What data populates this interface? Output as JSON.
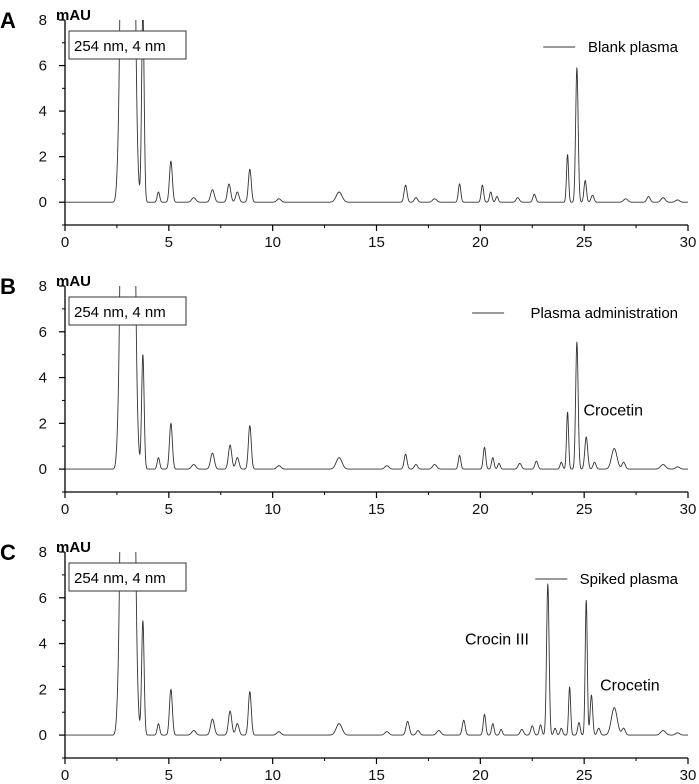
{
  "chart_data": [
    {
      "type": "line",
      "panel_label": "A",
      "ylabel": "mAU",
      "info_box": "254 nm, 4 nm",
      "legend": "Blank plasma",
      "legend_position": "top-right",
      "xlim": [
        0,
        30
      ],
      "ylim": [
        -1,
        8
      ],
      "x_ticks": [
        0,
        5,
        10,
        15,
        20,
        25,
        30
      ],
      "y_ticks": [
        0,
        2,
        4,
        6,
        8
      ],
      "baseline": 0,
      "annotations": [],
      "peaks": [
        {
          "x": 2.55,
          "y": 0.6,
          "w": 0.07
        },
        {
          "x": 2.85,
          "y": 30,
          "w": 0.13
        },
        {
          "x": 3.2,
          "y": 30,
          "w": 0.12
        },
        {
          "x": 3.42,
          "y": 1.6,
          "w": 0.1
        },
        {
          "x": 3.75,
          "y": 8.5,
          "w": 0.06
        },
        {
          "x": 4.5,
          "y": 0.45,
          "w": 0.06
        },
        {
          "x": 5.1,
          "y": 1.8,
          "w": 0.07
        },
        {
          "x": 6.2,
          "y": 0.2,
          "w": 0.1
        },
        {
          "x": 7.1,
          "y": 0.55,
          "w": 0.09
        },
        {
          "x": 7.9,
          "y": 0.8,
          "w": 0.08
        },
        {
          "x": 8.3,
          "y": 0.45,
          "w": 0.08
        },
        {
          "x": 8.9,
          "y": 1.45,
          "w": 0.07
        },
        {
          "x": 10.3,
          "y": 0.15,
          "w": 0.1
        },
        {
          "x": 13.2,
          "y": 0.45,
          "w": 0.14
        },
        {
          "x": 16.4,
          "y": 0.75,
          "w": 0.07
        },
        {
          "x": 16.9,
          "y": 0.2,
          "w": 0.08
        },
        {
          "x": 17.8,
          "y": 0.15,
          "w": 0.1
        },
        {
          "x": 19.0,
          "y": 0.8,
          "w": 0.06
        },
        {
          "x": 20.1,
          "y": 0.75,
          "w": 0.06
        },
        {
          "x": 20.5,
          "y": 0.45,
          "w": 0.06
        },
        {
          "x": 20.8,
          "y": 0.25,
          "w": 0.06
        },
        {
          "x": 21.8,
          "y": 0.2,
          "w": 0.08
        },
        {
          "x": 22.6,
          "y": 0.35,
          "w": 0.07
        },
        {
          "x": 24.2,
          "y": 2.1,
          "w": 0.05
        },
        {
          "x": 24.65,
          "y": 5.9,
          "w": 0.06
        },
        {
          "x": 25.05,
          "y": 0.95,
          "w": 0.06
        },
        {
          "x": 25.4,
          "y": 0.3,
          "w": 0.07
        },
        {
          "x": 27.0,
          "y": 0.15,
          "w": 0.1
        },
        {
          "x": 28.1,
          "y": 0.25,
          "w": 0.08
        },
        {
          "x": 28.8,
          "y": 0.2,
          "w": 0.1
        },
        {
          "x": 29.5,
          "y": 0.1,
          "w": 0.1
        }
      ]
    },
    {
      "type": "line",
      "panel_label": "B",
      "ylabel": "mAU",
      "info_box": "254 nm, 4 nm",
      "legend": "Plasma administration",
      "legend_position": "top-right",
      "xlim": [
        0,
        30
      ],
      "ylim": [
        -1,
        8
      ],
      "x_ticks": [
        0,
        5,
        10,
        15,
        20,
        25,
        30
      ],
      "y_ticks": [
        0,
        2,
        4,
        6,
        8
      ],
      "baseline": 0,
      "annotations": [
        {
          "text": "Crocetin",
          "x": 26.4,
          "y": 2.35
        }
      ],
      "peaks": [
        {
          "x": 2.55,
          "y": 0.6,
          "w": 0.07
        },
        {
          "x": 2.85,
          "y": 30,
          "w": 0.13
        },
        {
          "x": 3.2,
          "y": 30,
          "w": 0.12
        },
        {
          "x": 3.42,
          "y": 1.6,
          "w": 0.1
        },
        {
          "x": 3.75,
          "y": 5.0,
          "w": 0.06
        },
        {
          "x": 4.5,
          "y": 0.5,
          "w": 0.06
        },
        {
          "x": 5.1,
          "y": 2.0,
          "w": 0.07
        },
        {
          "x": 6.2,
          "y": 0.2,
          "w": 0.1
        },
        {
          "x": 7.1,
          "y": 0.7,
          "w": 0.09
        },
        {
          "x": 7.95,
          "y": 1.05,
          "w": 0.08
        },
        {
          "x": 8.3,
          "y": 0.5,
          "w": 0.08
        },
        {
          "x": 8.9,
          "y": 1.9,
          "w": 0.07
        },
        {
          "x": 10.3,
          "y": 0.15,
          "w": 0.1
        },
        {
          "x": 13.2,
          "y": 0.5,
          "w": 0.14
        },
        {
          "x": 15.5,
          "y": 0.15,
          "w": 0.1
        },
        {
          "x": 16.4,
          "y": 0.65,
          "w": 0.07
        },
        {
          "x": 16.9,
          "y": 0.2,
          "w": 0.08
        },
        {
          "x": 17.8,
          "y": 0.2,
          "w": 0.1
        },
        {
          "x": 19.0,
          "y": 0.6,
          "w": 0.06
        },
        {
          "x": 20.2,
          "y": 0.95,
          "w": 0.06
        },
        {
          "x": 20.6,
          "y": 0.5,
          "w": 0.06
        },
        {
          "x": 20.9,
          "y": 0.25,
          "w": 0.06
        },
        {
          "x": 21.9,
          "y": 0.25,
          "w": 0.08
        },
        {
          "x": 22.7,
          "y": 0.35,
          "w": 0.07
        },
        {
          "x": 23.9,
          "y": 0.3,
          "w": 0.06
        },
        {
          "x": 24.2,
          "y": 2.5,
          "w": 0.05
        },
        {
          "x": 24.65,
          "y": 5.55,
          "w": 0.06
        },
        {
          "x": 25.1,
          "y": 1.4,
          "w": 0.07
        },
        {
          "x": 25.5,
          "y": 0.3,
          "w": 0.07
        },
        {
          "x": 26.45,
          "y": 0.9,
          "w": 0.13
        },
        {
          "x": 26.9,
          "y": 0.3,
          "w": 0.08
        },
        {
          "x": 28.8,
          "y": 0.2,
          "w": 0.12
        },
        {
          "x": 29.5,
          "y": 0.1,
          "w": 0.1
        }
      ]
    },
    {
      "type": "line",
      "panel_label": "C",
      "ylabel": "mAU",
      "info_box": "254 nm, 4 nm",
      "legend": "Spiked plasma",
      "legend_position": "top-right",
      "xlim": [
        0,
        30
      ],
      "ylim": [
        -1,
        8
      ],
      "x_ticks": [
        0,
        5,
        10,
        15,
        20,
        25,
        30
      ],
      "y_ticks": [
        0,
        2,
        4,
        6,
        8
      ],
      "baseline": 0,
      "annotations": [
        {
          "text": "Crocin  III",
          "x": 20.8,
          "y": 3.95
        },
        {
          "text": "Crocetin",
          "x": 27.2,
          "y": 1.95
        }
      ],
      "peaks": [
        {
          "x": 2.55,
          "y": 0.6,
          "w": 0.07
        },
        {
          "x": 2.85,
          "y": 30,
          "w": 0.13
        },
        {
          "x": 3.2,
          "y": 30,
          "w": 0.12
        },
        {
          "x": 3.42,
          "y": 1.6,
          "w": 0.1
        },
        {
          "x": 3.75,
          "y": 5.0,
          "w": 0.06
        },
        {
          "x": 4.5,
          "y": 0.5,
          "w": 0.06
        },
        {
          "x": 5.1,
          "y": 2.0,
          "w": 0.07
        },
        {
          "x": 6.2,
          "y": 0.2,
          "w": 0.1
        },
        {
          "x": 7.1,
          "y": 0.7,
          "w": 0.09
        },
        {
          "x": 7.95,
          "y": 1.05,
          "w": 0.08
        },
        {
          "x": 8.3,
          "y": 0.5,
          "w": 0.08
        },
        {
          "x": 8.9,
          "y": 1.9,
          "w": 0.07
        },
        {
          "x": 10.3,
          "y": 0.15,
          "w": 0.1
        },
        {
          "x": 13.2,
          "y": 0.5,
          "w": 0.14
        },
        {
          "x": 15.5,
          "y": 0.15,
          "w": 0.1
        },
        {
          "x": 16.5,
          "y": 0.6,
          "w": 0.08
        },
        {
          "x": 17.0,
          "y": 0.2,
          "w": 0.08
        },
        {
          "x": 18.0,
          "y": 0.2,
          "w": 0.1
        },
        {
          "x": 19.2,
          "y": 0.65,
          "w": 0.07
        },
        {
          "x": 20.2,
          "y": 0.9,
          "w": 0.06
        },
        {
          "x": 20.6,
          "y": 0.5,
          "w": 0.06
        },
        {
          "x": 21.0,
          "y": 0.25,
          "w": 0.06
        },
        {
          "x": 22.0,
          "y": 0.25,
          "w": 0.08
        },
        {
          "x": 22.5,
          "y": 0.4,
          "w": 0.07
        },
        {
          "x": 22.9,
          "y": 0.45,
          "w": 0.06
        },
        {
          "x": 23.25,
          "y": 6.6,
          "w": 0.06
        },
        {
          "x": 23.6,
          "y": 0.3,
          "w": 0.06
        },
        {
          "x": 23.9,
          "y": 0.3,
          "w": 0.06
        },
        {
          "x": 24.3,
          "y": 2.1,
          "w": 0.05
        },
        {
          "x": 24.75,
          "y": 0.55,
          "w": 0.06
        },
        {
          "x": 25.1,
          "y": 5.9,
          "w": 0.05
        },
        {
          "x": 25.35,
          "y": 1.75,
          "w": 0.06
        },
        {
          "x": 25.7,
          "y": 0.3,
          "w": 0.07
        },
        {
          "x": 26.45,
          "y": 1.2,
          "w": 0.14
        },
        {
          "x": 26.9,
          "y": 0.3,
          "w": 0.08
        },
        {
          "x": 28.8,
          "y": 0.2,
          "w": 0.12
        },
        {
          "x": 29.5,
          "y": 0.1,
          "w": 0.1
        }
      ]
    }
  ]
}
